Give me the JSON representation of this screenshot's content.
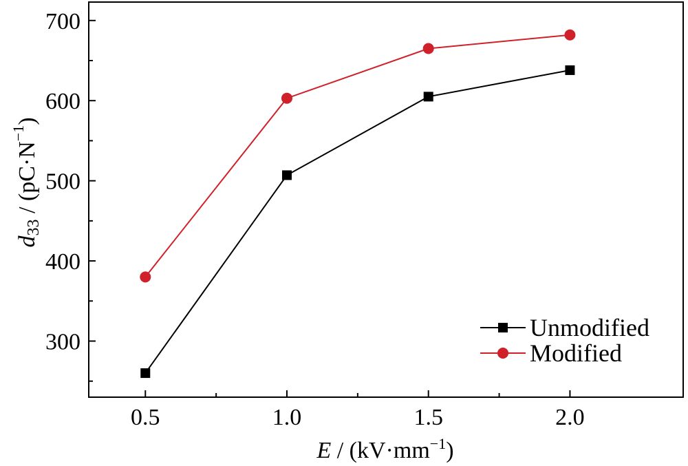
{
  "chart_data": {
    "type": "line",
    "x": [
      0.5,
      1.0,
      1.5,
      2.0
    ],
    "x_tick_labels": [
      "0.5",
      "1.0",
      "1.5",
      "2.0"
    ],
    "y_ticks": [
      300,
      400,
      500,
      600,
      700
    ],
    "xlim": [
      0.3,
      2.4
    ],
    "ylim": [
      230,
      723
    ],
    "xlabel": {
      "symbol": "E",
      "unit_prefix": " / (kV·mm",
      "unit_sup": "−1",
      "unit_suffix": ")"
    },
    "ylabel": {
      "symbol": "d",
      "symbol_sub": "33",
      "unit_prefix": " / (pC·N",
      "unit_sup": "−1",
      "unit_suffix": ")"
    },
    "series": [
      {
        "name": "Unmodified",
        "values": [
          260,
          507,
          605,
          638
        ],
        "color": "#000000",
        "marker": "square"
      },
      {
        "name": "Modified",
        "values": [
          380,
          603,
          665,
          682
        ],
        "color": "#d0202a",
        "marker": "circle"
      }
    ],
    "legend_position": "bottom-right",
    "grid": false
  }
}
